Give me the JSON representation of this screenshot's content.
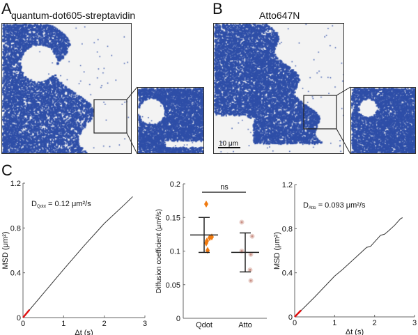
{
  "panels": {
    "a": {
      "letter": "A",
      "title": "quantum-dot605-streptavidin"
    },
    "b": {
      "letter": "B",
      "title": "Atto647N",
      "scale_bar": "10 μm"
    },
    "c": {
      "letter": "C"
    }
  },
  "colors": {
    "track": "#2f4fa8",
    "background": "#f2f2f2",
    "qdot": "#f07a10",
    "atto": "#c98f84",
    "fit": "#e01010"
  },
  "chart_data": [
    {
      "type": "line",
      "annotation": {
        "prefix": "D",
        "sub": "Qdot",
        "text": " = 0.12 μm²/s"
      },
      "xlabel": "Δt (s)",
      "ylabel": "MSD (μm²)",
      "xlim": [
        0,
        3
      ],
      "ylim": [
        0,
        1.2
      ],
      "xticks": [
        "0",
        "1",
        "2",
        "3"
      ],
      "yticks": [
        "0",
        "0.4",
        "0.8",
        "1.2"
      ],
      "series": [
        {
          "x": [
            0,
            0.5,
            1,
            1.5,
            2,
            2.5,
            2.7
          ],
          "y": [
            0,
            0.215,
            0.43,
            0.64,
            0.84,
            1.01,
            1.08
          ]
        }
      ],
      "fit_segment": {
        "x": [
          0,
          0.16
        ],
        "y": [
          0,
          0.07
        ]
      }
    },
    {
      "type": "scatter",
      "ylabel": "Diffusion coefficient (μm²/s)",
      "categories": [
        "Qdot",
        "Atto"
      ],
      "ylim": [
        0,
        0.2
      ],
      "yticks": [
        "0",
        "0.05",
        "0.1",
        "0.15",
        "0.2"
      ],
      "groups": [
        {
          "category": "Qdot",
          "points": [
            0.17,
            0.121,
            0.12,
            0.115,
            0.112,
            0.101
          ],
          "mean": 0.124,
          "err_low": 0.098,
          "err_high": 0.15
        },
        {
          "category": "Atto",
          "points": [
            0.143,
            0.122,
            0.1,
            0.095,
            0.072,
            0.056
          ],
          "mean": 0.098,
          "err_low": 0.069,
          "err_high": 0.127
        }
      ],
      "significance": "ns"
    },
    {
      "type": "line",
      "annotation": {
        "prefix": "D",
        "sub": "Atto",
        "text": " = 0.093 μm²/s"
      },
      "xlabel": "Δt (s)",
      "ylabel": "MSD (μm²)",
      "xlim": [
        0,
        3
      ],
      "ylim": [
        0,
        1.2
      ],
      "xticks": [
        "0",
        "1",
        "2",
        "3"
      ],
      "yticks": [
        "0",
        "0.4",
        "0.8",
        "1.2"
      ],
      "series": [
        {
          "x": [
            0,
            0.5,
            1,
            1.2,
            1.5,
            1.8,
            1.9,
            2,
            2.15,
            2.25,
            2.35,
            2.5,
            2.65,
            2.7
          ],
          "y": [
            0,
            0.18,
            0.37,
            0.43,
            0.53,
            0.63,
            0.64,
            0.68,
            0.74,
            0.75,
            0.78,
            0.83,
            0.89,
            0.9
          ]
        }
      ],
      "fit_segment": {
        "x": [
          0,
          0.16
        ],
        "y": [
          0,
          0.06
        ]
      }
    }
  ]
}
